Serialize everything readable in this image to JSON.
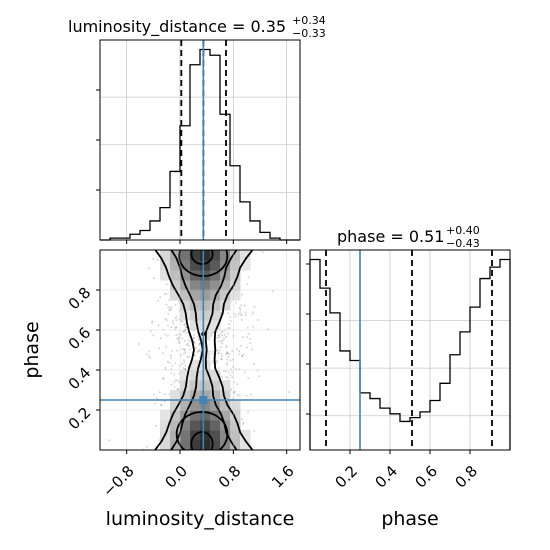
{
  "figure": {
    "top_title": {
      "main": "luminosity_distance = 0.35",
      "sup": "+0.34",
      "sub": "−0.33"
    },
    "right_title": {
      "main": "phase = 0.51",
      "sup": "+0.40",
      "sub": "−0.43"
    },
    "xlabel_left": "luminosity_distance",
    "xlabel_right": "phase",
    "ylabel": "phase"
  },
  "colors": {
    "truth": "#4682b4",
    "hist": "#000000",
    "grid": "#c8c8c8",
    "quantile": "#000000"
  },
  "chart_data": [
    {
      "panel": "luminosity_distance marginal",
      "type": "bar",
      "style": "step histogram",
      "xlim": [
        -1.2,
        1.8
      ],
      "bin_edges": [
        -1.2,
        -1.05,
        -0.9,
        -0.75,
        -0.6,
        -0.45,
        -0.3,
        -0.15,
        0.0,
        0.15,
        0.3,
        0.45,
        0.6,
        0.75,
        0.9,
        1.05,
        1.2,
        1.35,
        1.5,
        1.65,
        1.8
      ],
      "values": [
        0,
        0.01,
        0.01,
        0.03,
        0.05,
        0.1,
        0.17,
        0.36,
        0.6,
        0.92,
        1.0,
        0.97,
        0.66,
        0.39,
        0.2,
        0.1,
        0.04,
        0.01,
        0,
        0
      ],
      "quantiles": [
        0.02,
        0.35,
        0.69
      ],
      "truth": 0.35,
      "grid": true
    },
    {
      "panel": "phase marginal",
      "type": "bar",
      "style": "step histogram",
      "xlim": [
        0.0,
        1.0
      ],
      "bin_edges": [
        0.0,
        0.05,
        0.1,
        0.15,
        0.2,
        0.25,
        0.3,
        0.35,
        0.4,
        0.45,
        0.5,
        0.55,
        0.6,
        0.65,
        0.7,
        0.75,
        0.8,
        0.85,
        0.9,
        0.95,
        1.0
      ],
      "values": [
        1.0,
        0.85,
        0.72,
        0.52,
        0.47,
        0.3,
        0.27,
        0.22,
        0.19,
        0.15,
        0.17,
        0.2,
        0.26,
        0.35,
        0.5,
        0.62,
        0.75,
        0.9,
        0.96,
        1.0
      ],
      "quantiles": [
        0.08,
        0.51,
        0.91
      ],
      "truth": 0.25,
      "xticks": [
        "0.2",
        "0.4",
        "0.6",
        "0.8"
      ],
      "grid": true
    },
    {
      "panel": "luminosity_distance vs phase",
      "type": "heatmap",
      "style": "2D density with contours",
      "x_label": "luminosity_distance",
      "y_label": "phase",
      "xlim": [
        -1.2,
        1.8
      ],
      "ylim": [
        0.0,
        1.0
      ],
      "xticks": [
        "−0.8",
        "0.0",
        "0.8",
        "1.6"
      ],
      "yticks": [
        "0.2",
        "0.4",
        "0.6",
        "0.8"
      ],
      "truth": {
        "x": 0.35,
        "y": 0.25
      },
      "grid": true
    }
  ]
}
